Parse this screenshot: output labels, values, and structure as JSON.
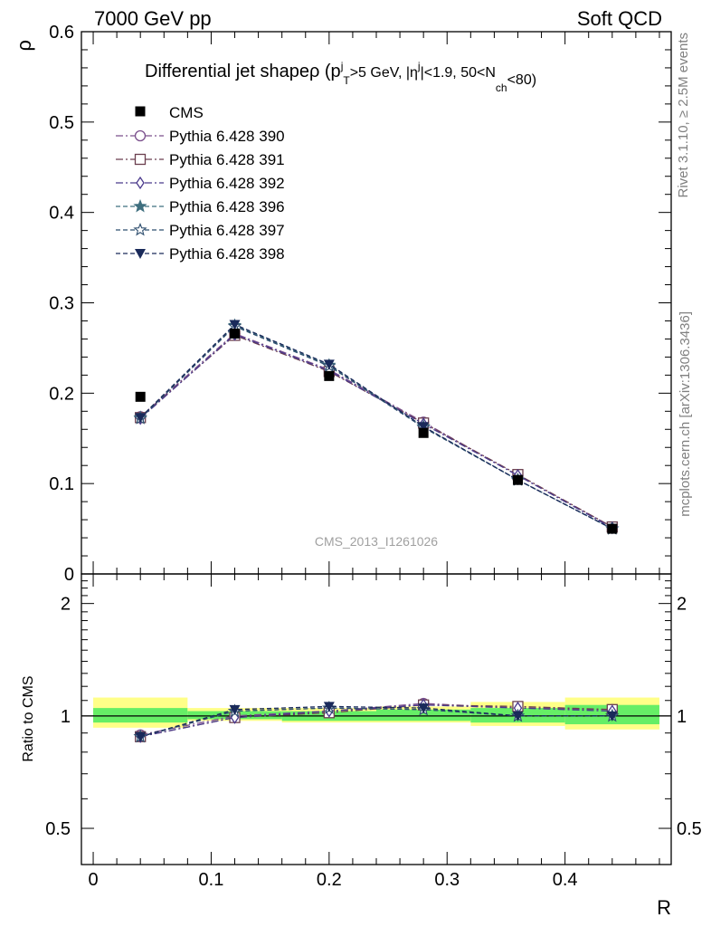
{
  "header": {
    "left": "7000 GeV pp",
    "right": "Soft QCD"
  },
  "side": {
    "rivet": "Rivet 3.1.10, ≥ 2.5M events",
    "mcplots": "mcplots.cern.ch [arXiv:1306.3436]"
  },
  "colors": {
    "cms": "#000000",
    "band_inner": "#66ee66",
    "band_outer": "#ffff88",
    "s390": "#7a4f8c",
    "s391": "#6b3f4f",
    "s392": "#4b3a8c",
    "s396": "#3f6f7f",
    "s397": "#2f4f6f",
    "s398": "#1a2a5a"
  },
  "chart_data": [
    {
      "type": "line",
      "title": "Differential jet shapeρ (p",
      "title_parts": {
        "main": "Differential jet shapeρ (p",
        "sup_j": "j",
        "sub_T": "T",
        "cut1": ">5 GeV, |η",
        "sup_j2": "j",
        "cut2": "|<1.9, 50<N",
        "sub_ch": "ch",
        "cut3": "<80)"
      },
      "ylabel": "ρ",
      "xlabel": "R",
      "ylim": [
        0,
        0.6
      ],
      "xlim": [
        -0.01,
        0.49
      ],
      "yticks": [
        "0",
        "0.1",
        "0.2",
        "0.3",
        "0.4",
        "0.5",
        "0.6"
      ],
      "watermark": "CMS_2013_I1261026",
      "x": [
        0.04,
        0.12,
        0.2,
        0.28,
        0.36,
        0.44
      ],
      "data": {
        "name": "CMS",
        "values": [
          0.196,
          0.266,
          0.219,
          0.156,
          0.104,
          0.05
        ]
      },
      "series": [
        {
          "name": "Pythia 6.428 390",
          "marker": "circle-open",
          "dash": "dashdot",
          "values": [
            0.174,
            0.266,
            0.226,
            0.168,
            0.109,
            0.052
          ]
        },
        {
          "name": "Pythia 6.428 391",
          "marker": "square-open",
          "dash": "dashdot",
          "values": [
            0.173,
            0.264,
            0.224,
            0.167,
            0.11,
            0.052
          ]
        },
        {
          "name": "Pythia 6.428 392",
          "marker": "diamond-open",
          "dash": "dashdot",
          "values": [
            0.172,
            0.265,
            0.225,
            0.166,
            0.109,
            0.051
          ]
        },
        {
          "name": "Pythia 6.428 396",
          "marker": "star-filled",
          "dash": "dashed",
          "values": [
            0.173,
            0.275,
            0.231,
            0.163,
            0.104,
            0.05
          ]
        },
        {
          "name": "Pythia 6.428 397",
          "marker": "star-open",
          "dash": "dashed",
          "values": [
            0.172,
            0.274,
            0.23,
            0.162,
            0.104,
            0.05
          ]
        },
        {
          "name": "Pythia 6.428 398",
          "marker": "triangle-down-filled",
          "dash": "dashed",
          "values": [
            0.173,
            0.276,
            0.232,
            0.163,
            0.104,
            0.05
          ]
        }
      ]
    },
    {
      "type": "line",
      "ylabel": "Ratio to CMS",
      "xlabel": "R",
      "ylim": [
        0.4,
        2.4
      ],
      "log_y": true,
      "yticks": [
        "0.5",
        "1",
        "2"
      ],
      "xticks": [
        "0",
        "0.1",
        "0.2",
        "0.3",
        "0.4"
      ],
      "bands": [
        {
          "x0": 0.0,
          "x1": 0.08,
          "inner": [
            0.96,
            1.05
          ],
          "outer": [
            0.93,
            1.12
          ]
        },
        {
          "x0": 0.08,
          "x1": 0.16,
          "inner": [
            0.98,
            1.03
          ],
          "outer": [
            0.97,
            1.05
          ]
        },
        {
          "x0": 0.16,
          "x1": 0.24,
          "inner": [
            0.97,
            1.03
          ],
          "outer": [
            0.96,
            1.05
          ]
        },
        {
          "x0": 0.24,
          "x1": 0.32,
          "inner": [
            0.97,
            1.04
          ],
          "outer": [
            0.96,
            1.06
          ]
        },
        {
          "x0": 0.32,
          "x1": 0.4,
          "inner": [
            0.96,
            1.05
          ],
          "outer": [
            0.94,
            1.09
          ]
        },
        {
          "x0": 0.4,
          "x1": 0.48,
          "inner": [
            0.95,
            1.07
          ],
          "outer": [
            0.92,
            1.12
          ]
        }
      ],
      "series": [
        {
          "name": "Pythia 6.428 390",
          "values": [
            0.89,
            1.0,
            1.03,
            1.08,
            1.05,
            1.04
          ]
        },
        {
          "name": "Pythia 6.428 391",
          "values": [
            0.88,
            0.99,
            1.02,
            1.07,
            1.06,
            1.04
          ]
        },
        {
          "name": "Pythia 6.428 392",
          "values": [
            0.88,
            0.99,
            1.03,
            1.07,
            1.05,
            1.03
          ]
        },
        {
          "name": "Pythia 6.428 396",
          "values": [
            0.88,
            1.03,
            1.05,
            1.04,
            1.0,
            1.0
          ]
        },
        {
          "name": "Pythia 6.428 397",
          "values": [
            0.88,
            1.03,
            1.05,
            1.04,
            1.0,
            1.0
          ]
        },
        {
          "name": "Pythia 6.428 398",
          "values": [
            0.88,
            1.04,
            1.06,
            1.05,
            1.0,
            1.0
          ]
        }
      ]
    }
  ]
}
